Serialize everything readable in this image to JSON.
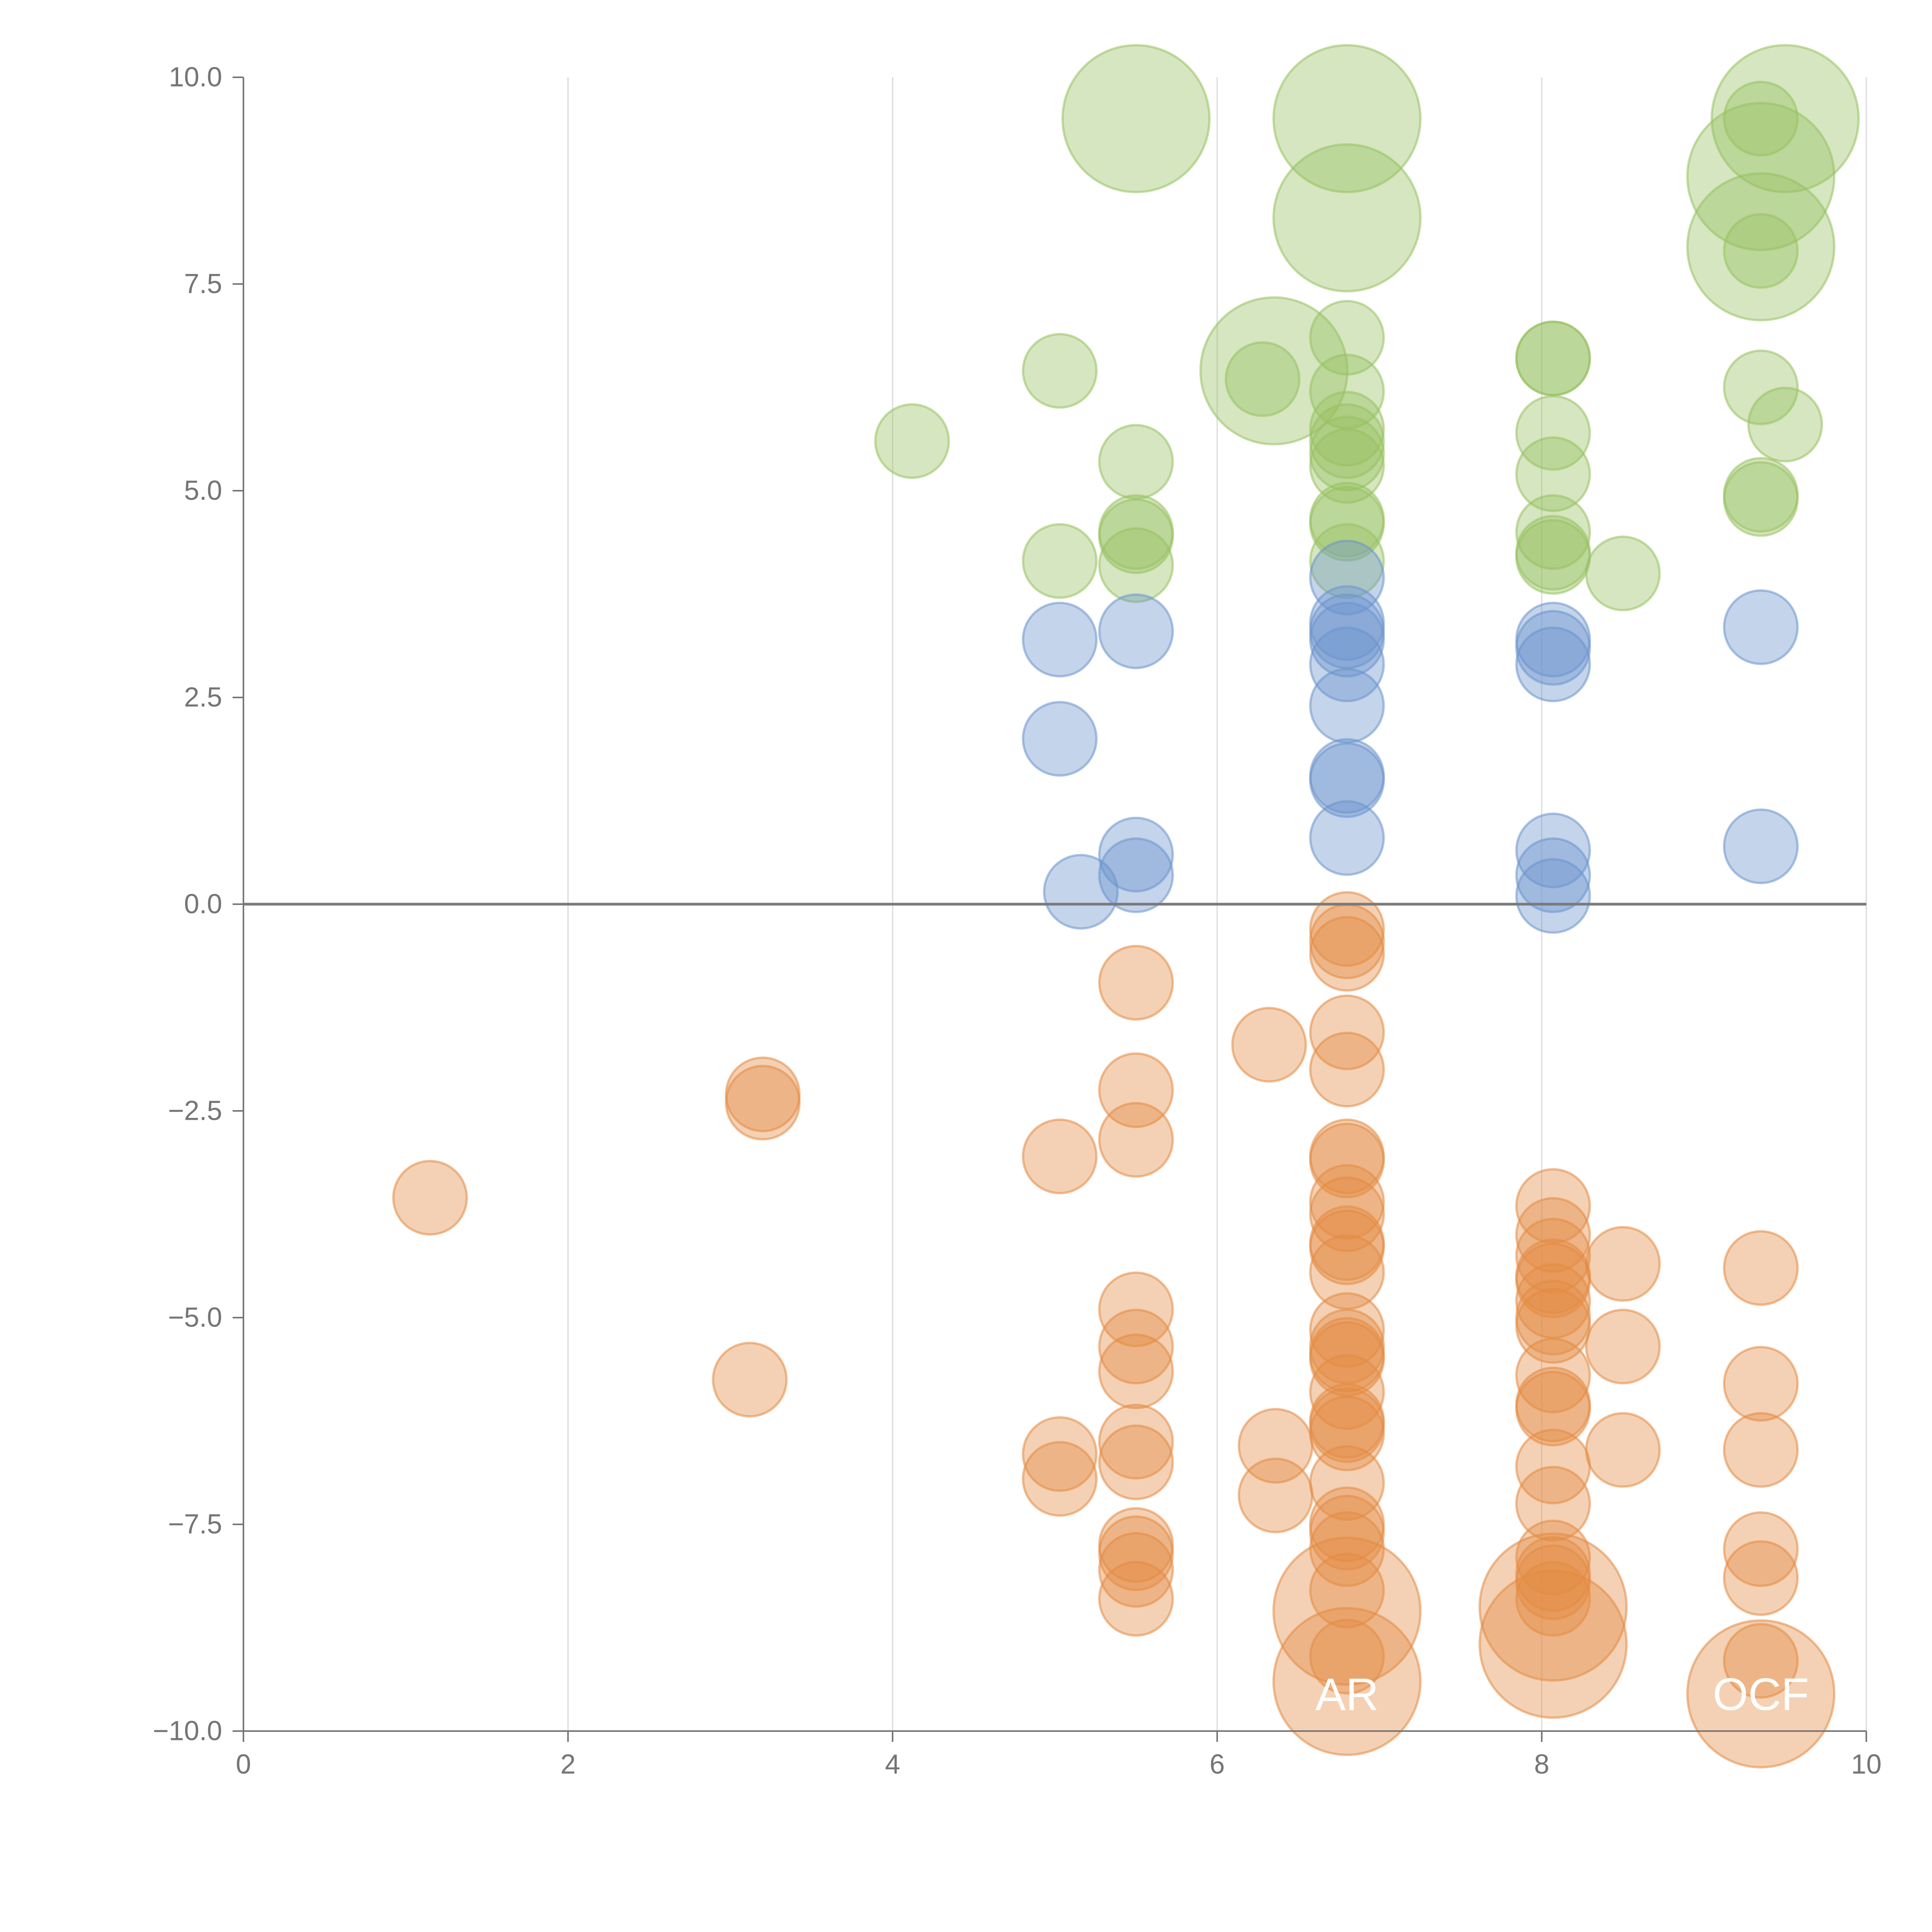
{
  "chart_data": {
    "type": "scatter",
    "title": "",
    "xlabel": "",
    "ylabel": "",
    "xlim": [
      0,
      10
    ],
    "ylim": [
      -10,
      10
    ],
    "grid": "vertical",
    "legend": "none",
    "x_ticks": [
      0,
      2,
      4,
      6,
      8,
      10
    ],
    "x_tick_labels": [
      "0",
      "2",
      "4",
      "6",
      "8",
      "10"
    ],
    "y_ticks": [
      10,
      7.5,
      5,
      2.5,
      0,
      -2.5,
      -5,
      -7.5,
      -10
    ],
    "y_tick_labels": [
      "10.0",
      "7.5",
      "5.0",
      "2.5",
      "0.0",
      "−2.5",
      "−5.0",
      "−7.5",
      "−10.0"
    ],
    "reference_line_y": 0,
    "colors": {
      "green": "#97c161",
      "blue": "#6c93cc",
      "orange": "#e48b44",
      "axis": "#757575",
      "grid": "#d9d9d9",
      "zero_line": "#7a7a7a"
    },
    "series": [
      {
        "name": "green",
        "color": "#97c161",
        "points": [
          [
            5.5,
            9.5,
            2
          ],
          [
            6.8,
            9.5,
            2
          ],
          [
            6.8,
            8.3,
            2
          ],
          [
            6.35,
            6.45,
            2
          ],
          [
            9.5,
            9.5,
            2
          ],
          [
            9.35,
            8.8,
            2
          ],
          [
            9.35,
            7.95,
            2
          ],
          [
            9.35,
            9.5,
            1
          ],
          [
            9.35,
            7.9,
            1
          ],
          [
            4.12,
            5.6,
            1
          ],
          [
            5.03,
            6.45,
            1
          ],
          [
            5.03,
            4.15,
            1
          ],
          [
            5.5,
            5.35,
            1
          ],
          [
            5.5,
            4.5,
            1
          ],
          [
            5.5,
            4.45,
            1
          ],
          [
            5.5,
            4.1,
            1
          ],
          [
            6.28,
            6.35,
            1
          ],
          [
            6.8,
            6.85,
            1
          ],
          [
            6.8,
            6.2,
            1
          ],
          [
            6.8,
            5.75,
            1
          ],
          [
            6.8,
            5.6,
            1
          ],
          [
            6.8,
            5.45,
            1
          ],
          [
            6.8,
            5.3,
            1
          ],
          [
            6.8,
            4.65,
            1
          ],
          [
            6.8,
            4.6,
            1
          ],
          [
            6.8,
            4.15,
            1
          ],
          [
            8.07,
            6.6,
            1
          ],
          [
            8.07,
            6.6,
            1
          ],
          [
            8.07,
            5.7,
            1
          ],
          [
            8.07,
            5.2,
            1
          ],
          [
            8.07,
            4.5,
            1
          ],
          [
            8.07,
            4.25,
            1
          ],
          [
            8.07,
            4.2,
            1
          ],
          [
            8.5,
            4.0,
            1
          ],
          [
            9.35,
            6.25,
            1
          ],
          [
            9.5,
            5.8,
            1
          ],
          [
            9.35,
            4.95,
            1
          ],
          [
            9.35,
            4.9,
            1
          ]
        ]
      },
      {
        "name": "blue",
        "color": "#6c93cc",
        "points": [
          [
            5.03,
            3.2,
            1
          ],
          [
            5.03,
            2.0,
            1
          ],
          [
            5.16,
            0.15,
            1
          ],
          [
            5.5,
            3.3,
            1
          ],
          [
            5.5,
            0.6,
            1
          ],
          [
            5.5,
            0.35,
            1
          ],
          [
            6.8,
            3.95,
            1
          ],
          [
            6.8,
            3.4,
            1
          ],
          [
            6.8,
            3.3,
            1
          ],
          [
            6.8,
            3.2,
            1
          ],
          [
            6.8,
            2.9,
            1
          ],
          [
            6.8,
            2.4,
            1
          ],
          [
            6.8,
            1.55,
            1
          ],
          [
            6.8,
            1.5,
            1
          ],
          [
            6.8,
            0.8,
            1
          ],
          [
            8.07,
            3.2,
            1
          ],
          [
            8.07,
            3.1,
            1
          ],
          [
            8.07,
            2.9,
            1
          ],
          [
            8.07,
            0.65,
            1
          ],
          [
            8.07,
            0.35,
            1
          ],
          [
            8.07,
            0.1,
            1
          ],
          [
            9.35,
            3.35,
            1
          ],
          [
            9.35,
            0.7,
            1
          ]
        ]
      },
      {
        "name": "orange",
        "color": "#e48b44",
        "points": [
          [
            1.15,
            -3.55,
            1
          ],
          [
            3.12,
            -5.75,
            1
          ],
          [
            3.2,
            -2.3,
            1
          ],
          [
            3.2,
            -2.4,
            1
          ],
          [
            5.03,
            -3.05,
            1
          ],
          [
            5.03,
            -6.65,
            1
          ],
          [
            5.03,
            -6.95,
            1
          ],
          [
            5.5,
            -0.95,
            1
          ],
          [
            5.5,
            -2.25,
            1
          ],
          [
            5.5,
            -2.85,
            1
          ],
          [
            5.5,
            -4.9,
            1
          ],
          [
            5.5,
            -5.35,
            1
          ],
          [
            5.5,
            -5.65,
            1
          ],
          [
            5.5,
            -6.5,
            1
          ],
          [
            5.5,
            -6.75,
            1
          ],
          [
            5.5,
            -7.75,
            1
          ],
          [
            5.5,
            -7.85,
            1
          ],
          [
            5.5,
            -8.05,
            1
          ],
          [
            5.5,
            -8.4,
            1
          ],
          [
            6.32,
            -1.7,
            1
          ],
          [
            6.36,
            -6.55,
            1
          ],
          [
            6.36,
            -7.15,
            1
          ],
          [
            6.8,
            -0.3,
            1
          ],
          [
            6.8,
            -0.45,
            1
          ],
          [
            6.8,
            -0.6,
            1
          ],
          [
            6.8,
            -1.55,
            1
          ],
          [
            6.8,
            -2.0,
            1
          ],
          [
            6.8,
            -3.05,
            1
          ],
          [
            6.8,
            -3.1,
            1
          ],
          [
            6.8,
            -3.6,
            1
          ],
          [
            6.8,
            -3.75,
            1
          ],
          [
            6.8,
            -4.1,
            1
          ],
          [
            6.8,
            -4.15,
            1
          ],
          [
            6.8,
            -4.45,
            1
          ],
          [
            6.8,
            -5.15,
            1
          ],
          [
            6.8,
            -5.35,
            1
          ],
          [
            6.8,
            -5.45,
            1
          ],
          [
            6.8,
            -5.5,
            1
          ],
          [
            6.8,
            -5.9,
            1
          ],
          [
            6.8,
            -6.25,
            1
          ],
          [
            6.8,
            -6.3,
            1
          ],
          [
            6.8,
            -6.4,
            1
          ],
          [
            6.8,
            -7.0,
            1
          ],
          [
            6.8,
            -7.5,
            1
          ],
          [
            6.8,
            -7.6,
            1
          ],
          [
            6.8,
            -7.8,
            1
          ],
          [
            6.8,
            -8.3,
            1
          ],
          [
            6.8,
            -9.1,
            1
          ],
          [
            6.8,
            -8.55,
            2
          ],
          [
            6.8,
            -9.4,
            2
          ],
          [
            8.07,
            -3.65,
            1
          ],
          [
            8.07,
            -4.0,
            1
          ],
          [
            8.07,
            -4.25,
            1
          ],
          [
            8.07,
            -4.5,
            1
          ],
          [
            8.07,
            -4.55,
            1
          ],
          [
            8.07,
            -4.8,
            1
          ],
          [
            8.07,
            -5.0,
            1
          ],
          [
            8.07,
            -5.1,
            1
          ],
          [
            8.07,
            -5.7,
            1
          ],
          [
            8.07,
            -6.05,
            1
          ],
          [
            8.07,
            -6.1,
            1
          ],
          [
            8.07,
            -6.8,
            1
          ],
          [
            8.07,
            -7.25,
            1
          ],
          [
            8.07,
            -7.9,
            1
          ],
          [
            8.07,
            -8.1,
            1
          ],
          [
            8.07,
            -8.2,
            1
          ],
          [
            8.07,
            -8.4,
            1
          ],
          [
            8.07,
            -8.5,
            2
          ],
          [
            8.07,
            -8.95,
            2
          ],
          [
            8.5,
            -4.35,
            1
          ],
          [
            8.5,
            -5.35,
            1
          ],
          [
            8.5,
            -6.6,
            1
          ],
          [
            9.35,
            -4.4,
            1
          ],
          [
            9.35,
            -5.8,
            1
          ],
          [
            9.35,
            -6.6,
            1
          ],
          [
            9.35,
            -7.8,
            1
          ],
          [
            9.35,
            -8.15,
            1
          ],
          [
            9.35,
            -9.15,
            1
          ],
          [
            9.35,
            -9.55,
            2
          ]
        ]
      }
    ],
    "text_labels": [
      {
        "text": "AR",
        "x": 6.8,
        "y": -9.6
      },
      {
        "text": "OCF",
        "x": 9.35,
        "y": -9.6
      }
    ]
  }
}
